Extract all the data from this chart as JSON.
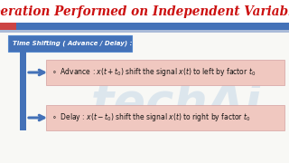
{
  "title": "Operation Performed on Independent Variables",
  "title_color": "#cc1111",
  "title_fontsize": 9.8,
  "bg_color": "#f0f0ec",
  "header_bar_color1": "#cc4444",
  "header_bar_color2": "#4472b8",
  "section_box_text": "Time Shifting ( Advance / Delay) :",
  "section_box_bg": "#4472b8",
  "section_box_text_color": "#ffffff",
  "row_bg": "#f0c8c0",
  "row_border": "#d4a0a0",
  "row_text_color": "#111111",
  "arrow_color": "#4472b8",
  "advance_full": "$\\circ$  Advance : $x(t + t_0)$ shift the signal $x(t)$ to left by factor $t_0$",
  "delay_full": "$\\circ$  Delay : $x(t - t_0)$ shift the signal $x(t)$ to right by factor $t_0$",
  "watermark_text": "techAi",
  "watermark_color": "#c5d8e8",
  "watermark_alpha": 0.55
}
